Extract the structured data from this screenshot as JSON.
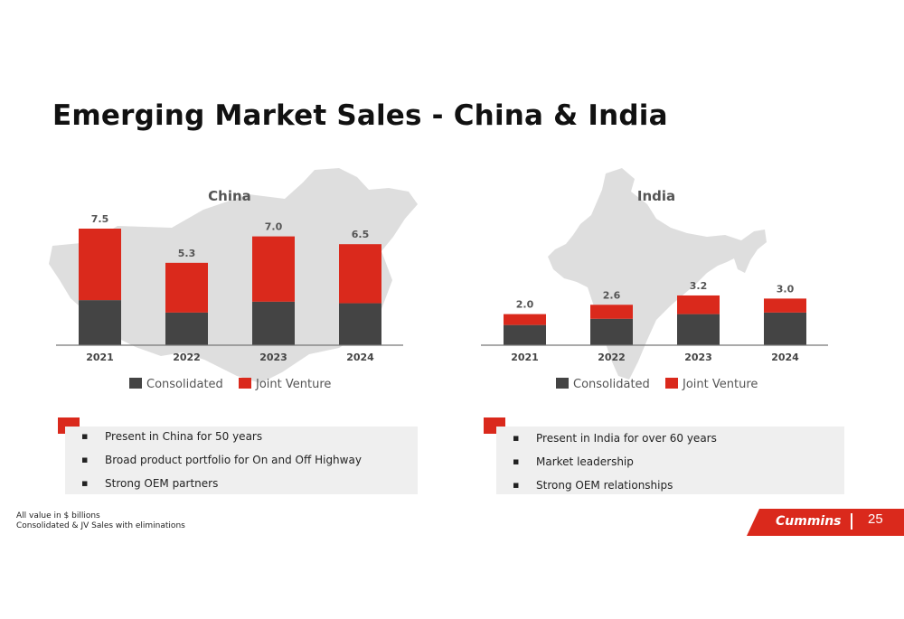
{
  "page": {
    "title": "Emerging Market Sales - China & India",
    "footnote": [
      "All value in $ billions",
      "Consolidated & JV Sales with eliminations"
    ],
    "brand": "Cummins",
    "page_number": "25"
  },
  "colors": {
    "consolidated": "#444444",
    "joint_venture": "#da291c",
    "map": "#dedede",
    "brand": "#da291c"
  },
  "china": {
    "bullets": [
      "Present in China for 50 years",
      "Broad product portfolio for On and Off Highway",
      "Strong OEM partners"
    ]
  },
  "india": {
    "bullets": [
      "Present in India for over 60 years",
      "Market leadership",
      "Strong OEM relationships"
    ]
  },
  "chart_data": [
    {
      "type": "bar",
      "stacked": true,
      "title": "China",
      "categories": [
        "2021",
        "2022",
        "2023",
        "2024"
      ],
      "series": [
        {
          "name": "Consolidated",
          "values": [
            2.9,
            2.1,
            2.8,
            2.7
          ]
        },
        {
          "name": "Joint Venture",
          "values": [
            4.6,
            3.2,
            4.2,
            3.8
          ]
        }
      ],
      "totals": [
        "7.5",
        "5.3",
        "7.0",
        "6.5"
      ],
      "ylim": [
        0,
        8
      ],
      "legend": "bottom",
      "grid": false
    },
    {
      "type": "bar",
      "stacked": true,
      "title": "India",
      "categories": [
        "2021",
        "2022",
        "2023",
        "2024"
      ],
      "series": [
        {
          "name": "Consolidated",
          "values": [
            1.3,
            1.7,
            2.0,
            2.1
          ]
        },
        {
          "name": "Joint Venture",
          "values": [
            0.7,
            0.9,
            1.2,
            0.9
          ]
        }
      ],
      "totals": [
        "2.0",
        "2.6",
        "3.2",
        "3.0"
      ],
      "ylim": [
        0,
        8
      ],
      "legend": "bottom",
      "grid": false
    }
  ]
}
